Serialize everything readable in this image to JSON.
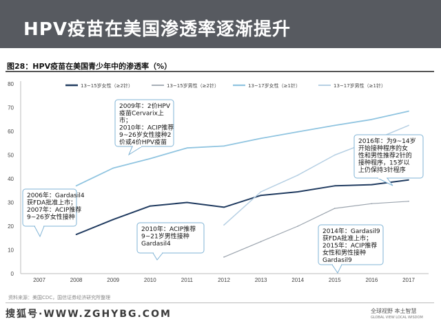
{
  "slide": {
    "title": "HPV疫苗在美国渗透率逐渐提升",
    "source": "资料来源：美国CDC，国信证券经济研究所整理",
    "watermark": "搜狐号·WWW.ZGHYBG.COM",
    "slogan_cn": "全球视野 本土智慧",
    "slogan_en": "GLOBAL VIEW  LOCAL WISDOM"
  },
  "chart_data": {
    "type": "line",
    "title": "图28：HPV疫苗在美国青少年中的渗透率（%）",
    "xlabel": "",
    "ylabel": "",
    "x": [
      "2007",
      "2008",
      "2009",
      "2010",
      "2011",
      "2012",
      "2013",
      "2014",
      "2015",
      "2016",
      "2017"
    ],
    "yticks": [
      "0",
      "10",
      "20",
      "30",
      "40",
      "50",
      "60",
      "70",
      "80"
    ],
    "ylim": [
      0,
      80
    ],
    "grid": false,
    "legend_position": "top",
    "series": [
      {
        "name": "13~15岁女性（≥2针）",
        "color": "#1f3a5f",
        "width": 2,
        "values": [
          null,
          16.5,
          22.8,
          28.5,
          30.0,
          28.0,
          33.0,
          34.5,
          37.0,
          37.5,
          39.5
        ]
      },
      {
        "name": "13~15岁男性（≥2针）",
        "color": "#9aa3ad",
        "width": 1.2,
        "values": [
          null,
          null,
          null,
          null,
          null,
          7.0,
          13.5,
          20.0,
          27.5,
          29.5,
          30.5
        ]
      },
      {
        "name": "13~17岁女性（≥1针）",
        "color": "#8fc4e0",
        "width": 1.8,
        "values": [
          null,
          37.0,
          44.5,
          48.5,
          53.0,
          53.8,
          57.0,
          59.8,
          62.5,
          65.0,
          68.5
        ]
      },
      {
        "name": "13~17岁男性（≥1针）",
        "color": "#b5cfe3",
        "width": 1.5,
        "values": [
          null,
          null,
          null,
          null,
          null,
          20.5,
          34.5,
          41.5,
          50.0,
          56.0,
          62.5
        ]
      }
    ],
    "annotations": [
      {
        "id": "ann-2009",
        "lines": [
          "2009年：2价HPV",
          "疫苗Cervarix上",
          "市；",
          "2010年：ACIP推荐",
          "9~26岁女性接种2",
          "价或4价HPV疫苗"
        ]
      },
      {
        "id": "ann-2006",
        "lines": [
          "2006年：Gardasil4",
          "获FDA批准上市；",
          "2007年：ACIP推荐",
          "9~26岁女性接种"
        ]
      },
      {
        "id": "ann-2010",
        "lines": [
          "2010年：ACIP推荐",
          "9~21岁男性接种",
          "Gardasil4"
        ]
      },
      {
        "id": "ann-2016",
        "lines": [
          "2016年：为9~14岁",
          "开始接种程序的女",
          "性和男性推荐2针的",
          "接种程序，15岁以",
          "上仍保持3针程序"
        ]
      },
      {
        "id": "ann-2014",
        "lines": [
          "2014年：Gardasil9",
          "获FDA批准上市；",
          "2015年：ACIP推荐",
          "女性和男性接种",
          "Gardasil9"
        ]
      }
    ]
  }
}
